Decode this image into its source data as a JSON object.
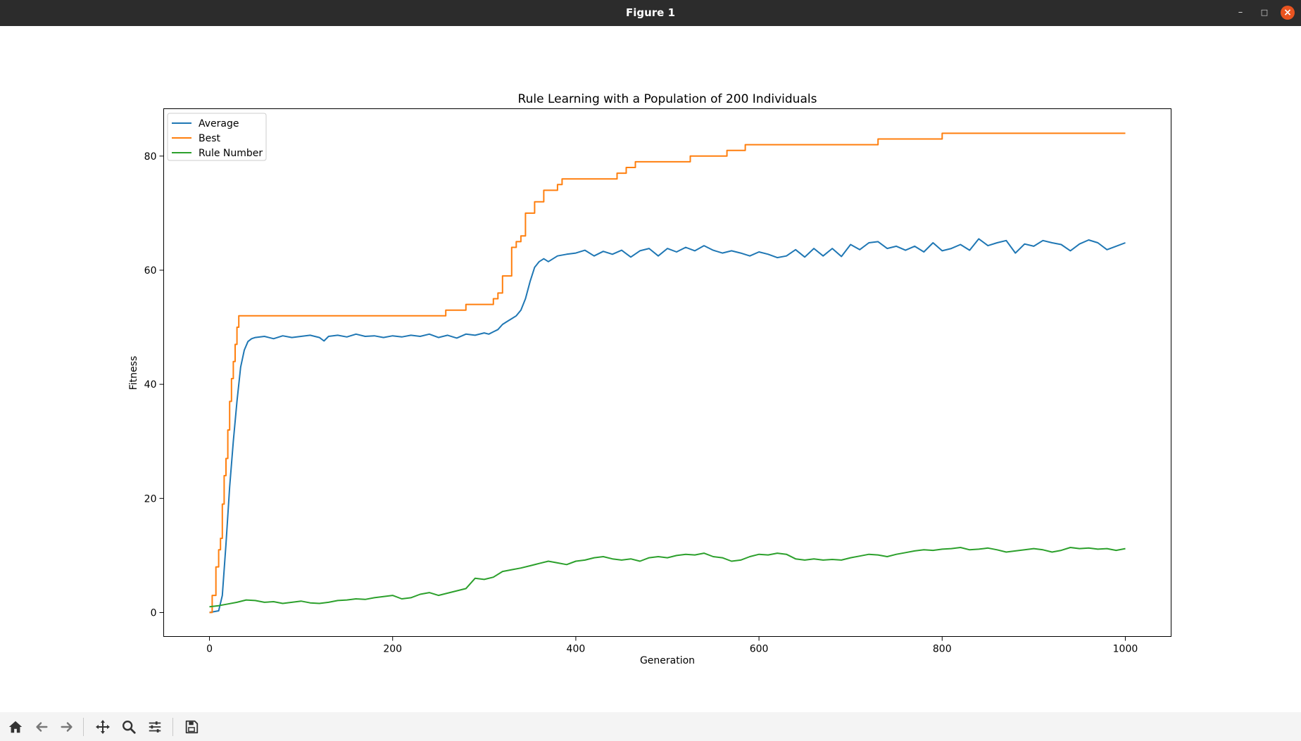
{
  "window": {
    "title": "Figure 1"
  },
  "toolbar": {
    "icons": [
      "home-icon",
      "back-icon",
      "forward-icon",
      "pan-icon",
      "zoom-icon",
      "configure-subplots-icon",
      "save-icon"
    ]
  },
  "colors": {
    "average": "#1f77b4",
    "best": "#ff7f0e",
    "rule_number": "#2ca02c",
    "titlebar": "#2c2c2c",
    "close": "#e95420"
  },
  "chart_data": {
    "type": "line",
    "title": "Rule Learning with a Population of 200 Individuals",
    "xlabel": "Generation",
    "ylabel": "Fitness",
    "xlim": [
      -50,
      1050
    ],
    "ylim": [
      -4.2,
      88.3
    ],
    "xticks": [
      0,
      200,
      400,
      600,
      800,
      1000
    ],
    "yticks": [
      0,
      20,
      40,
      60,
      80
    ],
    "grid": false,
    "legend_position": "upper-left",
    "series": [
      {
        "name": "Average",
        "color": "#1f77b4",
        "x": [
          0,
          10,
          14,
          18,
          22,
          26,
          30,
          34,
          38,
          42,
          46,
          50,
          60,
          70,
          80,
          90,
          100,
          110,
          120,
          125,
          130,
          140,
          150,
          160,
          170,
          180,
          190,
          200,
          210,
          220,
          230,
          240,
          250,
          260,
          270,
          280,
          290,
          300,
          305,
          310,
          315,
          320,
          325,
          330,
          335,
          340,
          345,
          350,
          355,
          360,
          365,
          370,
          380,
          390,
          400,
          410,
          420,
          430,
          440,
          450,
          460,
          470,
          480,
          490,
          500,
          510,
          520,
          530,
          540,
          550,
          560,
          570,
          580,
          590,
          600,
          610,
          620,
          630,
          640,
          650,
          660,
          670,
          680,
          690,
          700,
          710,
          720,
          730,
          740,
          750,
          760,
          770,
          780,
          790,
          800,
          810,
          820,
          830,
          840,
          850,
          860,
          870,
          880,
          890,
          900,
          910,
          920,
          930,
          940,
          950,
          960,
          970,
          980,
          990,
          1000
        ],
        "y": [
          0,
          0.3,
          3,
          12,
          22,
          30,
          37,
          43,
          46,
          47.5,
          48,
          48.2,
          48.4,
          48,
          48.5,
          48.2,
          48.4,
          48.6,
          48.2,
          47.6,
          48.4,
          48.6,
          48.3,
          48.8,
          48.4,
          48.5,
          48.2,
          48.5,
          48.3,
          48.6,
          48.4,
          48.8,
          48.2,
          48.6,
          48.1,
          48.8,
          48.6,
          49,
          48.8,
          49.2,
          49.6,
          50.5,
          51,
          51.5,
          52,
          53,
          55,
          58,
          60.5,
          61.5,
          62,
          61.5,
          62.5,
          62.8,
          63,
          63.5,
          62.5,
          63.3,
          62.8,
          63.5,
          62.3,
          63.4,
          63.8,
          62.5,
          63.8,
          63.2,
          64,
          63.4,
          64.3,
          63.5,
          63,
          63.4,
          63,
          62.5,
          63.2,
          62.8,
          62.2,
          62.5,
          63.6,
          62.3,
          63.8,
          62.5,
          63.8,
          62.4,
          64.5,
          63.6,
          64.8,
          65,
          63.8,
          64.2,
          63.5,
          64.2,
          63.2,
          64.8,
          63.4,
          63.8,
          64.5,
          63.5,
          65.5,
          64.3,
          64.8,
          65.2,
          63,
          64.6,
          64.2,
          65.2,
          64.8,
          64.5,
          63.4,
          64.6,
          65.3,
          64.8,
          63.6,
          64.2,
          64.8
        ]
      },
      {
        "name": "Best",
        "color": "#ff7f0e",
        "x": [
          0,
          3,
          3,
          7,
          7,
          10,
          10,
          12,
          12,
          14,
          14,
          16,
          16,
          18,
          18,
          20,
          20,
          22,
          22,
          24,
          24,
          26,
          26,
          28,
          28,
          30,
          30,
          32,
          32,
          34,
          34,
          245,
          245,
          258,
          258,
          280,
          280,
          310,
          310,
          315,
          315,
          320,
          320,
          330,
          330,
          335,
          335,
          340,
          340,
          345,
          345,
          355,
          355,
          365,
          365,
          380,
          380,
          385,
          385,
          390,
          390,
          445,
          445,
          452,
          452,
          455,
          455,
          465,
          465,
          470,
          470,
          520,
          520,
          525,
          525,
          565,
          565,
          570,
          570,
          585,
          585,
          725,
          725,
          730,
          730,
          800,
          800,
          1000
        ],
        "y": [
          0,
          0,
          3,
          3,
          8,
          8,
          11,
          11,
          13,
          13,
          19,
          19,
          24,
          24,
          27,
          27,
          32,
          32,
          37,
          37,
          41,
          41,
          44,
          44,
          47,
          47,
          50,
          50,
          52,
          52,
          52,
          52,
          52,
          52,
          53,
          53,
          54,
          54,
          55,
          55,
          56,
          56,
          59,
          59,
          64,
          64,
          65,
          65,
          66,
          66,
          70,
          70,
          72,
          72,
          74,
          74,
          75,
          75,
          76,
          76,
          76,
          76,
          77,
          77,
          77,
          77,
          78,
          78,
          79,
          79,
          79,
          79,
          79,
          79,
          80,
          80,
          81,
          81,
          81,
          81,
          82,
          82,
          82,
          82,
          83,
          83,
          84,
          84
        ]
      },
      {
        "name": "Rule Number",
        "color": "#2ca02c",
        "x": [
          0,
          10,
          20,
          30,
          40,
          50,
          60,
          70,
          80,
          90,
          100,
          110,
          120,
          130,
          140,
          150,
          160,
          170,
          180,
          190,
          200,
          210,
          220,
          230,
          240,
          250,
          260,
          270,
          280,
          290,
          300,
          310,
          320,
          330,
          340,
          350,
          360,
          370,
          380,
          390,
          400,
          410,
          420,
          430,
          440,
          450,
          460,
          470,
          480,
          490,
          500,
          510,
          520,
          530,
          540,
          550,
          560,
          570,
          580,
          590,
          600,
          610,
          620,
          630,
          640,
          650,
          660,
          670,
          680,
          690,
          700,
          710,
          720,
          730,
          740,
          750,
          760,
          770,
          780,
          790,
          800,
          810,
          820,
          830,
          840,
          850,
          860,
          870,
          880,
          890,
          900,
          910,
          920,
          930,
          940,
          950,
          960,
          970,
          980,
          990,
          1000
        ],
        "y": [
          1,
          1.2,
          1.5,
          1.8,
          2.2,
          2.1,
          1.8,
          1.9,
          1.6,
          1.8,
          2,
          1.7,
          1.6,
          1.8,
          2.1,
          2.2,
          2.4,
          2.3,
          2.6,
          2.8,
          3,
          2.4,
          2.6,
          3.2,
          3.5,
          3,
          3.4,
          3.8,
          4.2,
          6,
          5.8,
          6.2,
          7.2,
          7.5,
          7.8,
          8.2,
          8.6,
          9,
          8.7,
          8.4,
          9,
          9.2,
          9.6,
          9.8,
          9.4,
          9.2,
          9.4,
          9,
          9.6,
          9.8,
          9.6,
          10,
          10.2,
          10.1,
          10.4,
          9.8,
          9.6,
          9,
          9.2,
          9.8,
          10.2,
          10.1,
          10.4,
          10.2,
          9.4,
          9.2,
          9.4,
          9.2,
          9.3,
          9.2,
          9.6,
          9.9,
          10.2,
          10.1,
          9.8,
          10.2,
          10.5,
          10.8,
          11,
          10.9,
          11.1,
          11.2,
          11.4,
          11,
          11.1,
          11.3,
          11,
          10.6,
          10.8,
          11,
          11.2,
          11,
          10.6,
          10.9,
          11.4,
          11.2,
          11.3,
          11.1,
          11.2,
          10.9,
          11.2
        ]
      }
    ]
  }
}
